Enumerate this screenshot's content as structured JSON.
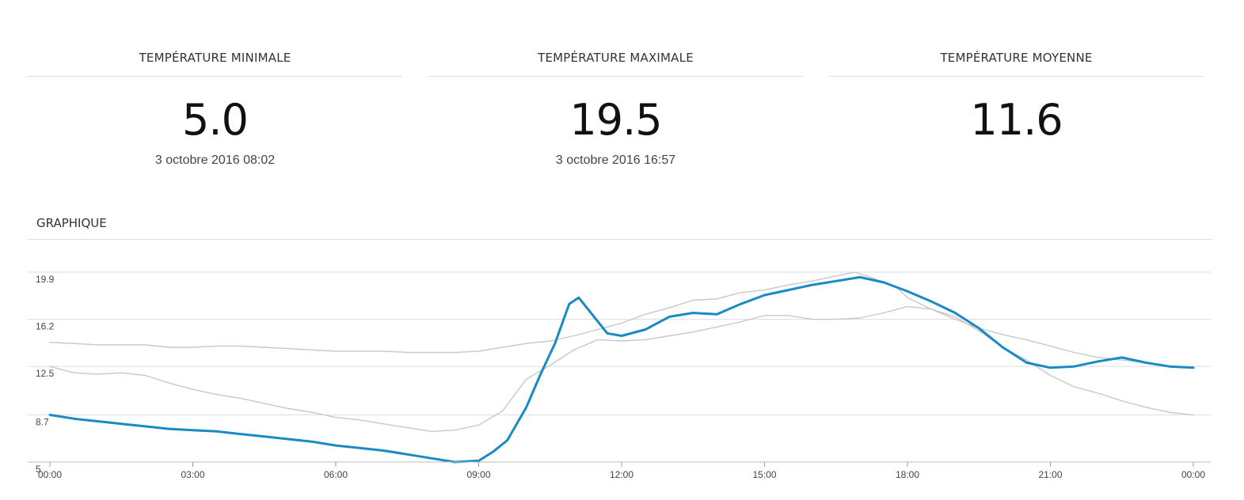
{
  "stats": [
    {
      "title": "TEMPÉRATURE MINIMALE",
      "value": "5.0",
      "date": "3 octobre 2016 08:02"
    },
    {
      "title": "TEMPÉRATURE MAXIMALE",
      "value": "19.5",
      "date": "3 octobre 2016 16:57"
    },
    {
      "title": "TEMPÉRATURE MOYENNE",
      "value": "11.6",
      "date": ""
    }
  ],
  "section": {
    "title": "GRAPHIQUE"
  },
  "chart_data": {
    "type": "line",
    "title": "",
    "xlabel": "",
    "ylabel": "",
    "xlim": [
      0,
      24
    ],
    "ylim": [
      5,
      19.9
    ],
    "yticks": [
      19.9,
      16.2,
      12.5,
      8.7,
      5
    ],
    "ytick_labels": [
      "19.9",
      "16.2",
      "12.5",
      "8.7",
      "5"
    ],
    "xticks": [
      0,
      3,
      6,
      9,
      12,
      15,
      18,
      21,
      24
    ],
    "xtick_labels": [
      "00:00",
      "03:00",
      "06:00",
      "09:00",
      "12:00",
      "15:00",
      "18:00",
      "21:00",
      "00:00"
    ],
    "grid": true,
    "colors": {
      "primary": "#1a8ac4",
      "secondary": "#c8c8c8",
      "grid": "#dddddd"
    },
    "series": [
      {
        "role": "upper-grey",
        "points": [
          [
            0,
            14.4
          ],
          [
            0.5,
            14.3
          ],
          [
            1,
            14.2
          ],
          [
            1.5,
            14.2
          ],
          [
            2,
            14.2
          ],
          [
            2.5,
            14.0
          ],
          [
            3,
            14.0
          ],
          [
            3.5,
            14.1
          ],
          [
            4,
            14.1
          ],
          [
            4.5,
            14.0
          ],
          [
            5,
            13.9
          ],
          [
            5.5,
            13.8
          ],
          [
            6,
            13.7
          ],
          [
            6.5,
            13.7
          ],
          [
            7,
            13.7
          ],
          [
            7.5,
            13.6
          ],
          [
            8,
            13.6
          ],
          [
            8.5,
            13.6
          ],
          [
            9,
            13.7
          ],
          [
            9.5,
            14.0
          ],
          [
            10,
            14.3
          ],
          [
            10.5,
            14.5
          ],
          [
            11,
            14.9
          ],
          [
            11.5,
            15.4
          ],
          [
            12,
            15.9
          ],
          [
            12.5,
            16.6
          ],
          [
            13,
            17.1
          ],
          [
            13.5,
            17.7
          ],
          [
            14,
            17.8
          ],
          [
            14.5,
            18.3
          ],
          [
            15,
            18.5
          ],
          [
            15.5,
            18.9
          ],
          [
            16,
            19.2
          ],
          [
            16.5,
            19.6
          ],
          [
            16.9,
            19.9
          ],
          [
            17.3,
            19.4
          ],
          [
            17.8,
            18.6
          ],
          [
            18,
            17.9
          ],
          [
            18.5,
            17.0
          ],
          [
            19,
            16.2
          ],
          [
            19.5,
            15.5
          ],
          [
            20,
            15.0
          ],
          [
            20.5,
            14.6
          ],
          [
            21,
            14.1
          ],
          [
            21.5,
            13.6
          ],
          [
            22,
            13.2
          ],
          [
            22.5,
            13.0
          ],
          [
            23,
            12.8
          ],
          [
            23.5,
            12.5
          ]
        ]
      },
      {
        "role": "lower-grey",
        "points": [
          [
            0,
            12.5
          ],
          [
            0.5,
            12.0
          ],
          [
            1,
            11.9
          ],
          [
            1.5,
            12.0
          ],
          [
            2,
            11.8
          ],
          [
            2.5,
            11.2
          ],
          [
            3,
            10.7
          ],
          [
            3.5,
            10.3
          ],
          [
            4,
            10.0
          ],
          [
            4.5,
            9.6
          ],
          [
            5,
            9.2
          ],
          [
            5.5,
            8.9
          ],
          [
            6,
            8.5
          ],
          [
            6.5,
            8.3
          ],
          [
            7,
            8.0
          ],
          [
            7.5,
            7.7
          ],
          [
            8,
            7.4
          ],
          [
            8.5,
            7.5
          ],
          [
            9,
            7.9
          ],
          [
            9.5,
            9.0
          ],
          [
            10,
            11.5
          ],
          [
            10.5,
            12.6
          ],
          [
            11,
            13.8
          ],
          [
            11.5,
            14.6
          ],
          [
            12,
            14.5
          ],
          [
            12.5,
            14.6
          ],
          [
            13,
            14.9
          ],
          [
            13.5,
            15.2
          ],
          [
            14,
            15.6
          ],
          [
            14.5,
            16.0
          ],
          [
            15,
            16.5
          ],
          [
            15.5,
            16.5
          ],
          [
            16,
            16.2
          ],
          [
            16.5,
            16.2
          ],
          [
            17,
            16.3
          ],
          [
            17.5,
            16.7
          ],
          [
            18,
            17.2
          ],
          [
            18.5,
            17.0
          ],
          [
            19,
            16.4
          ],
          [
            19.5,
            15.3
          ],
          [
            20,
            14.0
          ],
          [
            20.5,
            13.0
          ],
          [
            21,
            11.8
          ],
          [
            21.5,
            10.9
          ],
          [
            22,
            10.4
          ],
          [
            22.5,
            9.8
          ],
          [
            23,
            9.3
          ],
          [
            23.5,
            8.9
          ],
          [
            24,
            8.7
          ]
        ]
      },
      {
        "role": "current-blue",
        "points": [
          [
            0,
            8.7
          ],
          [
            0.5,
            8.4
          ],
          [
            1,
            8.2
          ],
          [
            1.5,
            8.0
          ],
          [
            2,
            7.8
          ],
          [
            2.5,
            7.6
          ],
          [
            3,
            7.5
          ],
          [
            3.5,
            7.4
          ],
          [
            4,
            7.2
          ],
          [
            4.5,
            7.0
          ],
          [
            5,
            6.8
          ],
          [
            5.5,
            6.6
          ],
          [
            6,
            6.3
          ],
          [
            6.5,
            6.1
          ],
          [
            7,
            5.9
          ],
          [
            7.5,
            5.6
          ],
          [
            8,
            5.3
          ],
          [
            8.5,
            5.0
          ],
          [
            9,
            5.1
          ],
          [
            9.3,
            5.8
          ],
          [
            9.6,
            6.7
          ],
          [
            10,
            9.3
          ],
          [
            10.3,
            11.9
          ],
          [
            10.6,
            14.3
          ],
          [
            10.9,
            17.4
          ],
          [
            11.1,
            17.9
          ],
          [
            11.4,
            16.5
          ],
          [
            11.7,
            15.1
          ],
          [
            12,
            14.9
          ],
          [
            12.5,
            15.4
          ],
          [
            13,
            16.4
          ],
          [
            13.5,
            16.7
          ],
          [
            14,
            16.6
          ],
          [
            14.5,
            17.4
          ],
          [
            15,
            18.1
          ],
          [
            15.5,
            18.5
          ],
          [
            16,
            18.9
          ],
          [
            16.5,
            19.2
          ],
          [
            17,
            19.5
          ],
          [
            17.5,
            19.1
          ],
          [
            18,
            18.4
          ],
          [
            18.5,
            17.6
          ],
          [
            19,
            16.7
          ],
          [
            19.5,
            15.5
          ],
          [
            20,
            14.0
          ],
          [
            20.5,
            12.8
          ],
          [
            21,
            12.4
          ],
          [
            21.5,
            12.5
          ],
          [
            22,
            12.9
          ],
          [
            22.5,
            13.2
          ],
          [
            23,
            12.8
          ],
          [
            23.5,
            12.5
          ],
          [
            24,
            12.4
          ]
        ]
      }
    ]
  }
}
